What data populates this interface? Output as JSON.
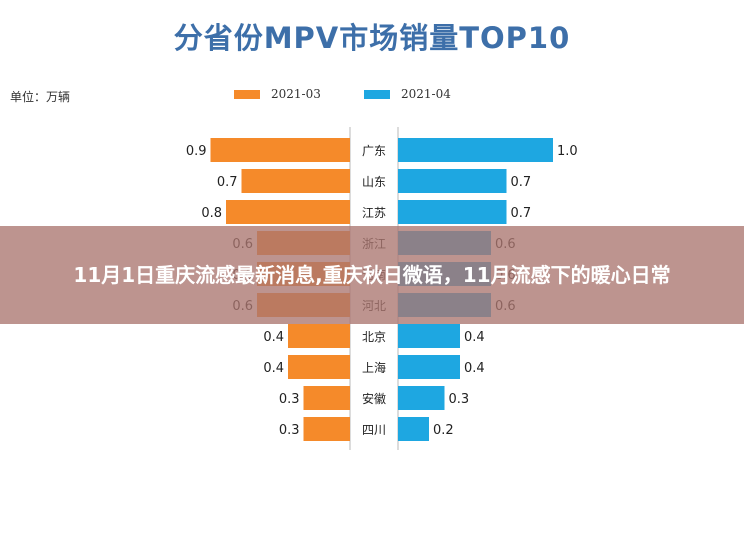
{
  "headline": "11月1日重庆流感最新消息,重庆秋日微语，11月流感下的暖心日常",
  "chart_data": {
    "type": "bar",
    "title": "分省份MPV市场销量TOP10",
    "unit_label": "单位：万辆",
    "categories": [
      "广东",
      "山东",
      "江苏",
      "浙江",
      "河南",
      "河北",
      "北京",
      "上海",
      "安徽",
      "四川"
    ],
    "series": [
      {
        "name": "2021-03",
        "color": "#f58a2a",
        "values": [
          0.9,
          0.7,
          0.8,
          0.6,
          0.6,
          0.6,
          0.4,
          0.4,
          0.3,
          0.3
        ]
      },
      {
        "name": "2021-04",
        "color": "#1ea7e1",
        "values": [
          1.0,
          0.7,
          0.7,
          0.6,
          0.6,
          0.6,
          0.4,
          0.4,
          0.3,
          0.2
        ]
      }
    ],
    "xlim": [
      0,
      1.0
    ],
    "legend_position": "top",
    "grid": false
  }
}
